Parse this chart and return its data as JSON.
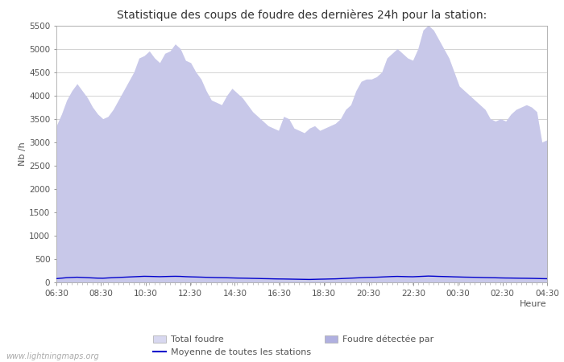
{
  "title": "Statistique des coups de foudre des dernières 24h pour la station:",
  "xlabel": "Heure",
  "ylabel": "Nb /h",
  "ylim": [
    0,
    5500
  ],
  "yticks": [
    0,
    500,
    1000,
    1500,
    2000,
    2500,
    3000,
    3500,
    4000,
    4500,
    5000,
    5500
  ],
  "xtick_labels": [
    "06:30",
    "08:30",
    "10:30",
    "12:30",
    "14:30",
    "16:30",
    "18:30",
    "20:30",
    "22:30",
    "00:30",
    "02:30",
    "04:30"
  ],
  "bg_color": "#ffffff",
  "fill_color_total": "#d8d8f0",
  "fill_color_detected": "#b0b0e0",
  "line_color": "#0000cc",
  "watermark": "www.lightningmaps.org",
  "legend": [
    {
      "label": "Total foudre",
      "type": "fill",
      "color": "#d8d8f0"
    },
    {
      "label": "Moyenne de toutes les stations",
      "type": "line",
      "color": "#0000cc"
    },
    {
      "label": "Foudre détectée par",
      "type": "fill",
      "color": "#b0b0e0"
    }
  ],
  "x_total": [
    0,
    1,
    2,
    3,
    4,
    5,
    6,
    7,
    8,
    9,
    10,
    11,
    12,
    13,
    14,
    15,
    16,
    17,
    18,
    19,
    20,
    21,
    22,
    23,
    24,
    25,
    26,
    27,
    28,
    29,
    30,
    31,
    32,
    33,
    34,
    35,
    36,
    37,
    38,
    39,
    40,
    41,
    42,
    43,
    44,
    45,
    46,
    47,
    48,
    49,
    50,
    51,
    52,
    53,
    54,
    55,
    56,
    57,
    58,
    59,
    60,
    61,
    62,
    63,
    64,
    65,
    66,
    67,
    68,
    69,
    70,
    71,
    72,
    73,
    74,
    75,
    76,
    77,
    78,
    79,
    80,
    81,
    82,
    83,
    84,
    85,
    86,
    87,
    88,
    89,
    90,
    91,
    92,
    93,
    94,
    95
  ],
  "y_total": [
    3350,
    3600,
    3900,
    4100,
    4250,
    4100,
    3950,
    3750,
    3600,
    3500,
    3550,
    3700,
    3900,
    4100,
    4300,
    4500,
    4800,
    4850,
    4950,
    4800,
    4700,
    4900,
    4950,
    5100,
    5000,
    4750,
    4700,
    4500,
    4350,
    4100,
    3900,
    3850,
    3800,
    4000,
    4150,
    4050,
    3950,
    3800,
    3650,
    3550,
    3450,
    3350,
    3300,
    3250,
    3550,
    3500,
    3300,
    3250,
    3200,
    3300,
    3350,
    3250,
    3300,
    3350,
    3400,
    3500,
    3700,
    3800,
    4100,
    4300,
    4350,
    4350,
    4400,
    4500,
    4800,
    4900,
    5000,
    4900,
    4800,
    4750,
    5000,
    5400,
    5500,
    5400,
    5200,
    5000,
    4800,
    4500,
    4200,
    4100,
    4000,
    3900,
    3800,
    3700,
    3500,
    3450,
    3500,
    3450,
    3600,
    3700,
    3750,
    3800,
    3750,
    3650,
    3000,
    3050
  ],
  "y_line": [
    80,
    90,
    100,
    105,
    110,
    105,
    100,
    95,
    90,
    88,
    95,
    100,
    105,
    110,
    115,
    120,
    125,
    130,
    128,
    125,
    122,
    125,
    128,
    130,
    128,
    122,
    118,
    115,
    112,
    108,
    105,
    102,
    100,
    98,
    95,
    92,
    90,
    88,
    85,
    83,
    80,
    78,
    75,
    73,
    72,
    70,
    68,
    66,
    64,
    62,
    65,
    68,
    70,
    73,
    75,
    80,
    85,
    90,
    95,
    100,
    105,
    108,
    110,
    115,
    120,
    125,
    128,
    125,
    122,
    120,
    125,
    130,
    135,
    132,
    128,
    125,
    122,
    118,
    115,
    112,
    110,
    108,
    105,
    102,
    100,
    98,
    95,
    93,
    92,
    90,
    88,
    87,
    85,
    83,
    80,
    78
  ]
}
